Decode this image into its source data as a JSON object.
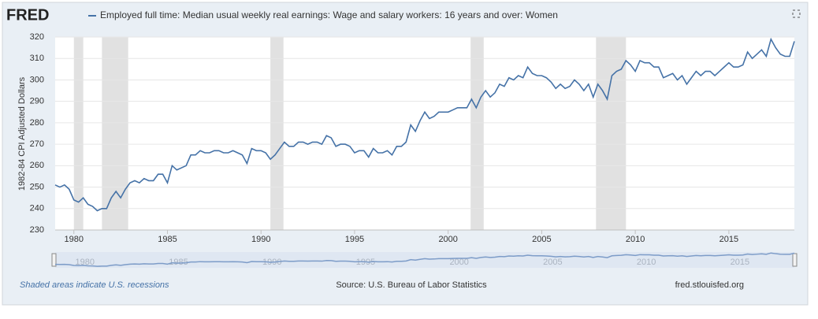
{
  "header": {
    "logo": "FRED"
  },
  "chart_data": {
    "type": "line",
    "ylabel": "1982-84 CPI Adjusted Dollars",
    "x": [
      1979,
      1979.25,
      1979.5,
      1979.75,
      1980,
      1980.25,
      1980.5,
      1980.75,
      1981,
      1981.25,
      1981.5,
      1981.75,
      1982,
      1982.25,
      1982.5,
      1982.75,
      1983,
      1983.25,
      1983.5,
      1983.75,
      1984,
      1984.25,
      1984.5,
      1984.75,
      1985,
      1985.25,
      1985.5,
      1985.75,
      1986,
      1986.25,
      1986.5,
      1986.75,
      1987,
      1987.25,
      1987.5,
      1987.75,
      1988,
      1988.25,
      1988.5,
      1988.75,
      1989,
      1989.25,
      1989.5,
      1989.75,
      1990,
      1990.25,
      1990.5,
      1990.75,
      1991,
      1991.25,
      1991.5,
      1991.75,
      1992,
      1992.25,
      1992.5,
      1992.75,
      1993,
      1993.25,
      1993.5,
      1993.75,
      1994,
      1994.25,
      1994.5,
      1994.75,
      1995,
      1995.25,
      1995.5,
      1995.75,
      1996,
      1996.25,
      1996.5,
      1996.75,
      1997,
      1997.25,
      1997.5,
      1997.75,
      1998,
      1998.25,
      1998.5,
      1998.75,
      1999,
      1999.25,
      1999.5,
      1999.75,
      2000,
      2000.25,
      2000.5,
      2000.75,
      2001,
      2001.25,
      2001.5,
      2001.75,
      2002,
      2002.25,
      2002.5,
      2002.75,
      2003,
      2003.25,
      2003.5,
      2003.75,
      2004,
      2004.25,
      2004.5,
      2004.75,
      2005,
      2005.25,
      2005.5,
      2005.75,
      2006,
      2006.25,
      2006.5,
      2006.75,
      2007,
      2007.25,
      2007.5,
      2007.75,
      2008,
      2008.25,
      2008.5,
      2008.75,
      2009,
      2009.25,
      2009.5,
      2009.75,
      2010,
      2010.25,
      2010.5,
      2010.75,
      2011,
      2011.25,
      2011.5,
      2011.75,
      2012,
      2012.25,
      2012.5,
      2012.75,
      2013,
      2013.25,
      2013.5,
      2013.75,
      2014,
      2014.25,
      2014.5,
      2014.75,
      2015,
      2015.25,
      2015.5,
      2015.75,
      2016,
      2016.25,
      2016.5,
      2016.75,
      2017,
      2017.25,
      2017.5,
      2017.75,
      2018,
      2018.25,
      2018.5
    ],
    "series": [
      {
        "name": "Employed full time: Median usual weekly real earnings: Wage and salary workers: 16 years and over: Women",
        "color": "#4572a7",
        "values": [
          251,
          250,
          251,
          249,
          244,
          243,
          245,
          242,
          241,
          239,
          240,
          240,
          245,
          248,
          245,
          249,
          252,
          253,
          252,
          254,
          253,
          253,
          256,
          256,
          252,
          260,
          258,
          259,
          260,
          265,
          265,
          267,
          266,
          266,
          267,
          267,
          266,
          266,
          267,
          266,
          265,
          261,
          268,
          267,
          267,
          266,
          263,
          265,
          268,
          271,
          269,
          269,
          271,
          271,
          270,
          271,
          271,
          270,
          274,
          273,
          269,
          270,
          270,
          269,
          266,
          267,
          267,
          264,
          268,
          266,
          266,
          267,
          265,
          269,
          269,
          271,
          279,
          276,
          281,
          285,
          282,
          283,
          285,
          285,
          285,
          286,
          287,
          287,
          287,
          291,
          287,
          292,
          295,
          292,
          294,
          298,
          297,
          301,
          300,
          302,
          301,
          306,
          303,
          302,
          302,
          301,
          299,
          296,
          298,
          296,
          297,
          300,
          298,
          295,
          298,
          292,
          298,
          295,
          291,
          302,
          304,
          305,
          309,
          307,
          304,
          309,
          308,
          308,
          306,
          306,
          301,
          302,
          303,
          300,
          302,
          298,
          301,
          304,
          302,
          304,
          304,
          302,
          304,
          306,
          308,
          306,
          306,
          307,
          313,
          310,
          312,
          314,
          311,
          319,
          315,
          312,
          311,
          311,
          318
        ]
      }
    ],
    "recessions": [
      [
        1980,
        1980.5
      ],
      [
        1981.5,
        1982.9
      ],
      [
        1990.5,
        1991.2
      ],
      [
        2001.2,
        2001.9
      ],
      [
        2007.9,
        2009.5
      ]
    ],
    "xlim": [
      1979,
      2018.5
    ],
    "xticks": [
      1980,
      1985,
      1990,
      1995,
      2000,
      2005,
      2010,
      2015
    ],
    "ylim": [
      230,
      320
    ],
    "yticks": [
      230,
      240,
      250,
      260,
      270,
      280,
      290,
      300,
      310,
      320
    ],
    "grid": true
  },
  "footer": {
    "note": "Shaded areas indicate U.S. recessions",
    "source": "Source: U.S. Bureau of Labor Statistics",
    "site": "fred.stlouisfed.org"
  }
}
